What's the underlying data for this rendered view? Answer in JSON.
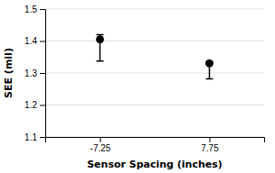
{
  "chart_data": {
    "type": "scatter",
    "categories": [
      "-7.25",
      "7.75"
    ],
    "values": [
      1.405,
      1.33
    ],
    "error_lower": [
      0.068,
      0.048
    ],
    "error_upper": [
      0.015,
      0.005
    ],
    "color": "black",
    "marker": "circle",
    "xlabel": "Sensor Spacing (inches)",
    "ylabel": "SEE (mil)",
    "ylim": [
      1.1,
      1.5
    ],
    "yticks": [
      1.1,
      1.2,
      1.3,
      1.4,
      1.5
    ],
    "grid": true
  }
}
